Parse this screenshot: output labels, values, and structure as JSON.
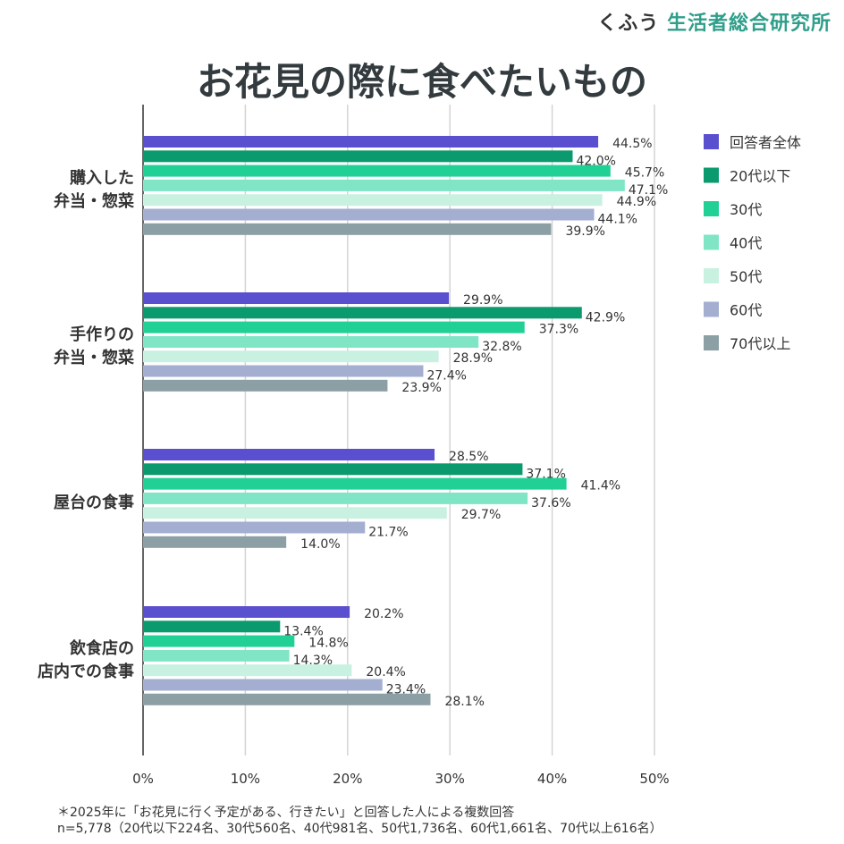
{
  "logo": {
    "prefix": "くふう",
    "name": "生活者総合研究所"
  },
  "chart_data": {
    "type": "bar",
    "orientation": "horizontal",
    "title": "お花見の際に食べたいもの",
    "categories": [
      [
        "購入した",
        "弁当・惣菜"
      ],
      [
        "手作りの",
        "弁当・惣菜"
      ],
      [
        "屋台の食事"
      ],
      [
        "飲食店の",
        "店内での食事"
      ]
    ],
    "series": [
      {
        "name": "回答者全体",
        "color": "#5a4fcf",
        "values": [
          44.5,
          29.9,
          28.5,
          20.2
        ]
      },
      {
        "name": "20代以下",
        "color": "#0b9a6d",
        "values": [
          42.0,
          42.9,
          37.1,
          13.4
        ]
      },
      {
        "name": "30代",
        "color": "#20d094",
        "values": [
          45.7,
          37.3,
          41.4,
          14.8
        ]
      },
      {
        "name": "40代",
        "color": "#7fe5c5",
        "values": [
          47.1,
          32.8,
          37.6,
          14.3
        ]
      },
      {
        "name": "50代",
        "color": "#c9f1e2",
        "values": [
          44.9,
          28.9,
          29.7,
          20.4
        ]
      },
      {
        "name": "60代",
        "color": "#a3aed0",
        "values": [
          44.1,
          27.4,
          21.7,
          23.4
        ]
      },
      {
        "name": "70代以上",
        "color": "#8b9fa4",
        "values": [
          39.9,
          23.9,
          14.0,
          28.1
        ]
      }
    ],
    "xlim": [
      0,
      50
    ],
    "xticks": [
      "0%",
      "10%",
      "20%",
      "30%",
      "40%",
      "50%"
    ],
    "grid": true,
    "legend": "top-right",
    "value_suffix": "%"
  },
  "footnote": [
    "＊2025年に「お花見に行く予定がある、行きたい」と回答した人による複数回答",
    "n=5,778（20代以下224名、30代560名、40代981名、50代1,736名、60代1,661名、70代以上616名）"
  ]
}
